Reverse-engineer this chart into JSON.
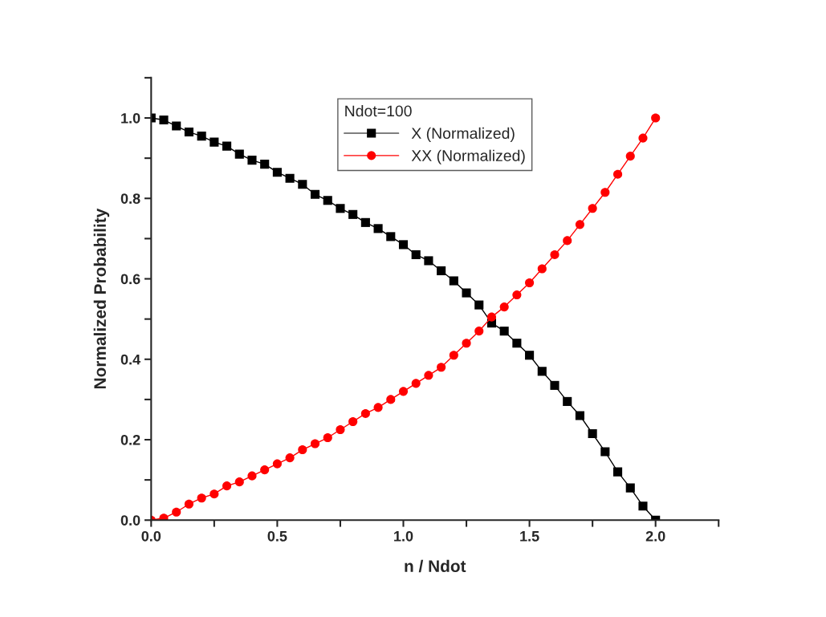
{
  "chart_data": {
    "type": "line",
    "xlabel": "n / Ndot",
    "ylabel": "Normalized Probability",
    "legend_title": "Ndot=100",
    "legend": "top",
    "grid": false,
    "x": [
      0,
      0.05,
      0.1,
      0.15,
      0.2,
      0.25,
      0.3,
      0.35,
      0.4,
      0.45,
      0.5,
      0.55,
      0.6,
      0.65,
      0.7,
      0.75,
      0.8,
      0.85,
      0.9,
      0.95,
      1.0,
      1.05,
      1.1,
      1.15,
      1.2,
      1.25,
      1.3,
      1.35,
      1.4,
      1.45,
      1.5,
      1.55,
      1.6,
      1.65,
      1.7,
      1.75,
      1.8,
      1.85,
      1.9,
      1.95,
      2.0
    ],
    "series": [
      {
        "name": "X (Normalized)",
        "color": "#000000",
        "marker": "square",
        "values": [
          1.0,
          0.995,
          0.98,
          0.965,
          0.955,
          0.94,
          0.93,
          0.91,
          0.895,
          0.885,
          0.865,
          0.85,
          0.835,
          0.81,
          0.795,
          0.775,
          0.76,
          0.74,
          0.725,
          0.705,
          0.685,
          0.66,
          0.645,
          0.62,
          0.595,
          0.565,
          0.535,
          0.49,
          0.47,
          0.44,
          0.41,
          0.37,
          0.335,
          0.295,
          0.26,
          0.215,
          0.17,
          0.12,
          0.08,
          0.035,
          0.0
        ]
      },
      {
        "name": "XX (Normalized)",
        "color": "#ff0000",
        "marker": "circle",
        "values": [
          0.0,
          0.005,
          0.02,
          0.04,
          0.055,
          0.065,
          0.085,
          0.095,
          0.11,
          0.125,
          0.14,
          0.155,
          0.175,
          0.19,
          0.205,
          0.225,
          0.245,
          0.265,
          0.28,
          0.3,
          0.32,
          0.34,
          0.36,
          0.38,
          0.41,
          0.44,
          0.47,
          0.505,
          0.53,
          0.56,
          0.59,
          0.625,
          0.66,
          0.695,
          0.735,
          0.775,
          0.815,
          0.86,
          0.905,
          0.95,
          1.0
        ]
      }
    ],
    "xlim": [
      0,
      2.25
    ],
    "ylim": [
      0,
      1.1
    ],
    "xticks": [
      {
        "value": 0,
        "label": "0.0"
      },
      {
        "value": 0.25,
        "label": null
      },
      0.5,
      {
        "value": 0.75,
        "label": null
      },
      {
        "value": 1,
        "label": "1.0"
      },
      {
        "value": 1.25,
        "label": null
      },
      1.5,
      {
        "value": 1.75,
        "label": null
      },
      {
        "value": 2,
        "label": "2.0"
      },
      {
        "value": 2.25,
        "label": null
      }
    ],
    "yticks": [
      {
        "value": 0,
        "label": "0.0"
      },
      {
        "value": 0.1,
        "label": null
      },
      0.2,
      {
        "value": 0.3,
        "label": null
      },
      0.4,
      {
        "value": 0.5,
        "label": null
      },
      0.6,
      {
        "value": 0.7,
        "label": null
      },
      0.8,
      {
        "value": 0.9,
        "label": null
      },
      {
        "value": 1,
        "label": "1.0"
      },
      {
        "value": 1.1,
        "label": null
      }
    ]
  }
}
